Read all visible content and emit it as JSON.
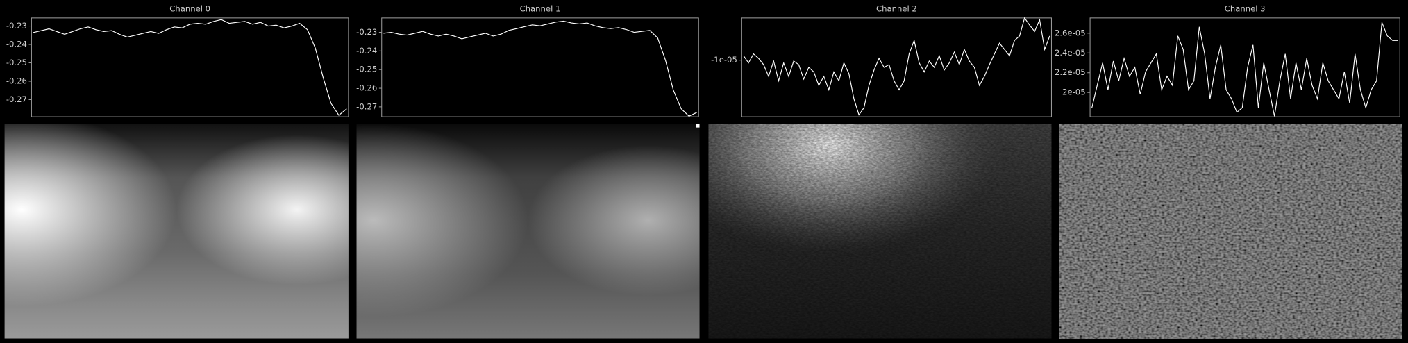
{
  "chart_data": [
    {
      "type": "line",
      "title": "Channel 0",
      "values": [
        -0.2335,
        -0.2325,
        -0.2315,
        -0.233,
        -0.2345,
        -0.233,
        -0.2315,
        -0.2305,
        -0.232,
        -0.233,
        -0.2325,
        -0.2345,
        -0.236,
        -0.235,
        -0.234,
        -0.233,
        -0.234,
        -0.232,
        -0.2305,
        -0.231,
        -0.229,
        -0.2285,
        -0.229,
        -0.2275,
        -0.2265,
        -0.2285,
        -0.228,
        -0.2275,
        -0.229,
        -0.228,
        -0.23,
        -0.2295,
        -0.231,
        -0.23,
        -0.2285,
        -0.232,
        -0.242,
        -0.258,
        -0.272,
        -0.2785,
        -0.275
      ],
      "color": "#ffffff",
      "ylim": [
        -0.2793,
        -0.2256
      ],
      "yticks": [
        -0.23,
        -0.24,
        -0.25,
        -0.26,
        -0.27
      ]
    },
    {
      "type": "line",
      "title": "Channel 1",
      "values": [
        -0.2305,
        -0.23,
        -0.231,
        -0.2315,
        -0.2305,
        -0.2295,
        -0.231,
        -0.232,
        -0.231,
        -0.232,
        -0.2335,
        -0.2325,
        -0.2315,
        -0.2305,
        -0.232,
        -0.231,
        -0.229,
        -0.228,
        -0.227,
        -0.226,
        -0.2265,
        -0.2255,
        -0.2245,
        -0.224,
        -0.225,
        -0.2255,
        -0.225,
        -0.2265,
        -0.2275,
        -0.228,
        -0.2275,
        -0.2285,
        -0.23,
        -0.2295,
        -0.229,
        -0.233,
        -0.245,
        -0.261,
        -0.271,
        -0.275,
        -0.273
      ],
      "color": "#ffffff",
      "ylim": [
        -0.2753,
        -0.2223
      ],
      "yticks": [
        -0.23,
        -0.24,
        -0.25,
        -0.26,
        -0.27
      ]
    },
    {
      "type": "line",
      "title": "Channel 2",
      "values": [
        -9.64e-06,
        -1.022e-05,
        -9.49e-06,
        -9.85e-06,
        -1.036e-05,
        -1.131e-05,
        -1.007e-05,
        -1.167e-05,
        -1.022e-05,
        -1.131e-05,
        -1.007e-05,
        -1.036e-05,
        -1.153e-05,
        -1.058e-05,
        -1.095e-05,
        -1.204e-05,
        -1.131e-05,
        -1.24e-05,
        -1.095e-05,
        -1.167e-05,
        -1.022e-05,
        -1.109e-05,
        -1.313e-05,
        -1.443e-05,
        -1.385e-05,
        -1.204e-05,
        -1.08e-05,
        -9.85e-06,
        -1.058e-05,
        -1.036e-05,
        -1.167e-05,
        -1.24e-05,
        -1.167e-05,
        -9.49e-06,
        -8.4e-06,
        -1.022e-05,
        -1.095e-05,
        -1.007e-05,
        -1.058e-05,
        -9.64e-06,
        -1.08e-05,
        -1.022e-05,
        -9.35e-06,
        -1.036e-05,
        -9.13e-06,
        -1.007e-05,
        -1.058e-05,
        -1.204e-05,
        -1.131e-05,
        -1.036e-05,
        -9.49e-06,
        -8.62e-06,
        -9.13e-06,
        -9.64e-06,
        -8.4e-06,
        -8.04e-06,
        -6.58e-06,
        -7.16e-06,
        -7.67e-06,
        -6.73e-06,
        -9.13e-06,
        -8.04e-06
      ],
      "color": "#ffffff",
      "ylim": [
        -1.458e-05,
        -6.58e-06
      ],
      "yticks": [
        {
          "value": -1e-05,
          "label": "-1e-05"
        }
      ]
    },
    {
      "type": "line",
      "title": "Channel 3",
      "values": [
        1.845e-05,
        2.073e-05,
        2.3e-05,
        2.027e-05,
        2.318e-05,
        2.118e-05,
        2.345e-05,
        2.164e-05,
        2.255e-05,
        1.982e-05,
        2.209e-05,
        2.3e-05,
        2.391e-05,
        2.027e-05,
        2.164e-05,
        2.073e-05,
        2.573e-05,
        2.436e-05,
        2.027e-05,
        2.118e-05,
        2.664e-05,
        2.391e-05,
        1.936e-05,
        2.255e-05,
        2.482e-05,
        2.027e-05,
        1.936e-05,
        1.8e-05,
        1.845e-05,
        2.255e-05,
        2.482e-05,
        1.845e-05,
        2.3e-05,
        2.027e-05,
        1.76e-05,
        2.118e-05,
        2.391e-05,
        1.936e-05,
        2.3e-05,
        2.027e-05,
        2.345e-05,
        2.073e-05,
        1.936e-05,
        2.3e-05,
        2.118e-05,
        2.027e-05,
        1.936e-05,
        2.209e-05,
        1.891e-05,
        2.391e-05,
        2.027e-05,
        1.845e-05,
        2.027e-05,
        2.118e-05,
        2.709e-05,
        2.573e-05,
        2.527e-05,
        2.527e-05
      ],
      "color": "#ffffff",
      "ylim": [
        1.7545e-05,
        2.7545e-05
      ],
      "yticks": [
        {
          "value": 2.6e-05,
          "label": "2.6e-05"
        },
        {
          "value": 2.4e-05,
          "label": "2.4e-05"
        },
        {
          "value": 2.2e-05,
          "label": "2.2e-05"
        },
        {
          "value": 2e-05,
          "label": "2e-05"
        }
      ]
    }
  ]
}
